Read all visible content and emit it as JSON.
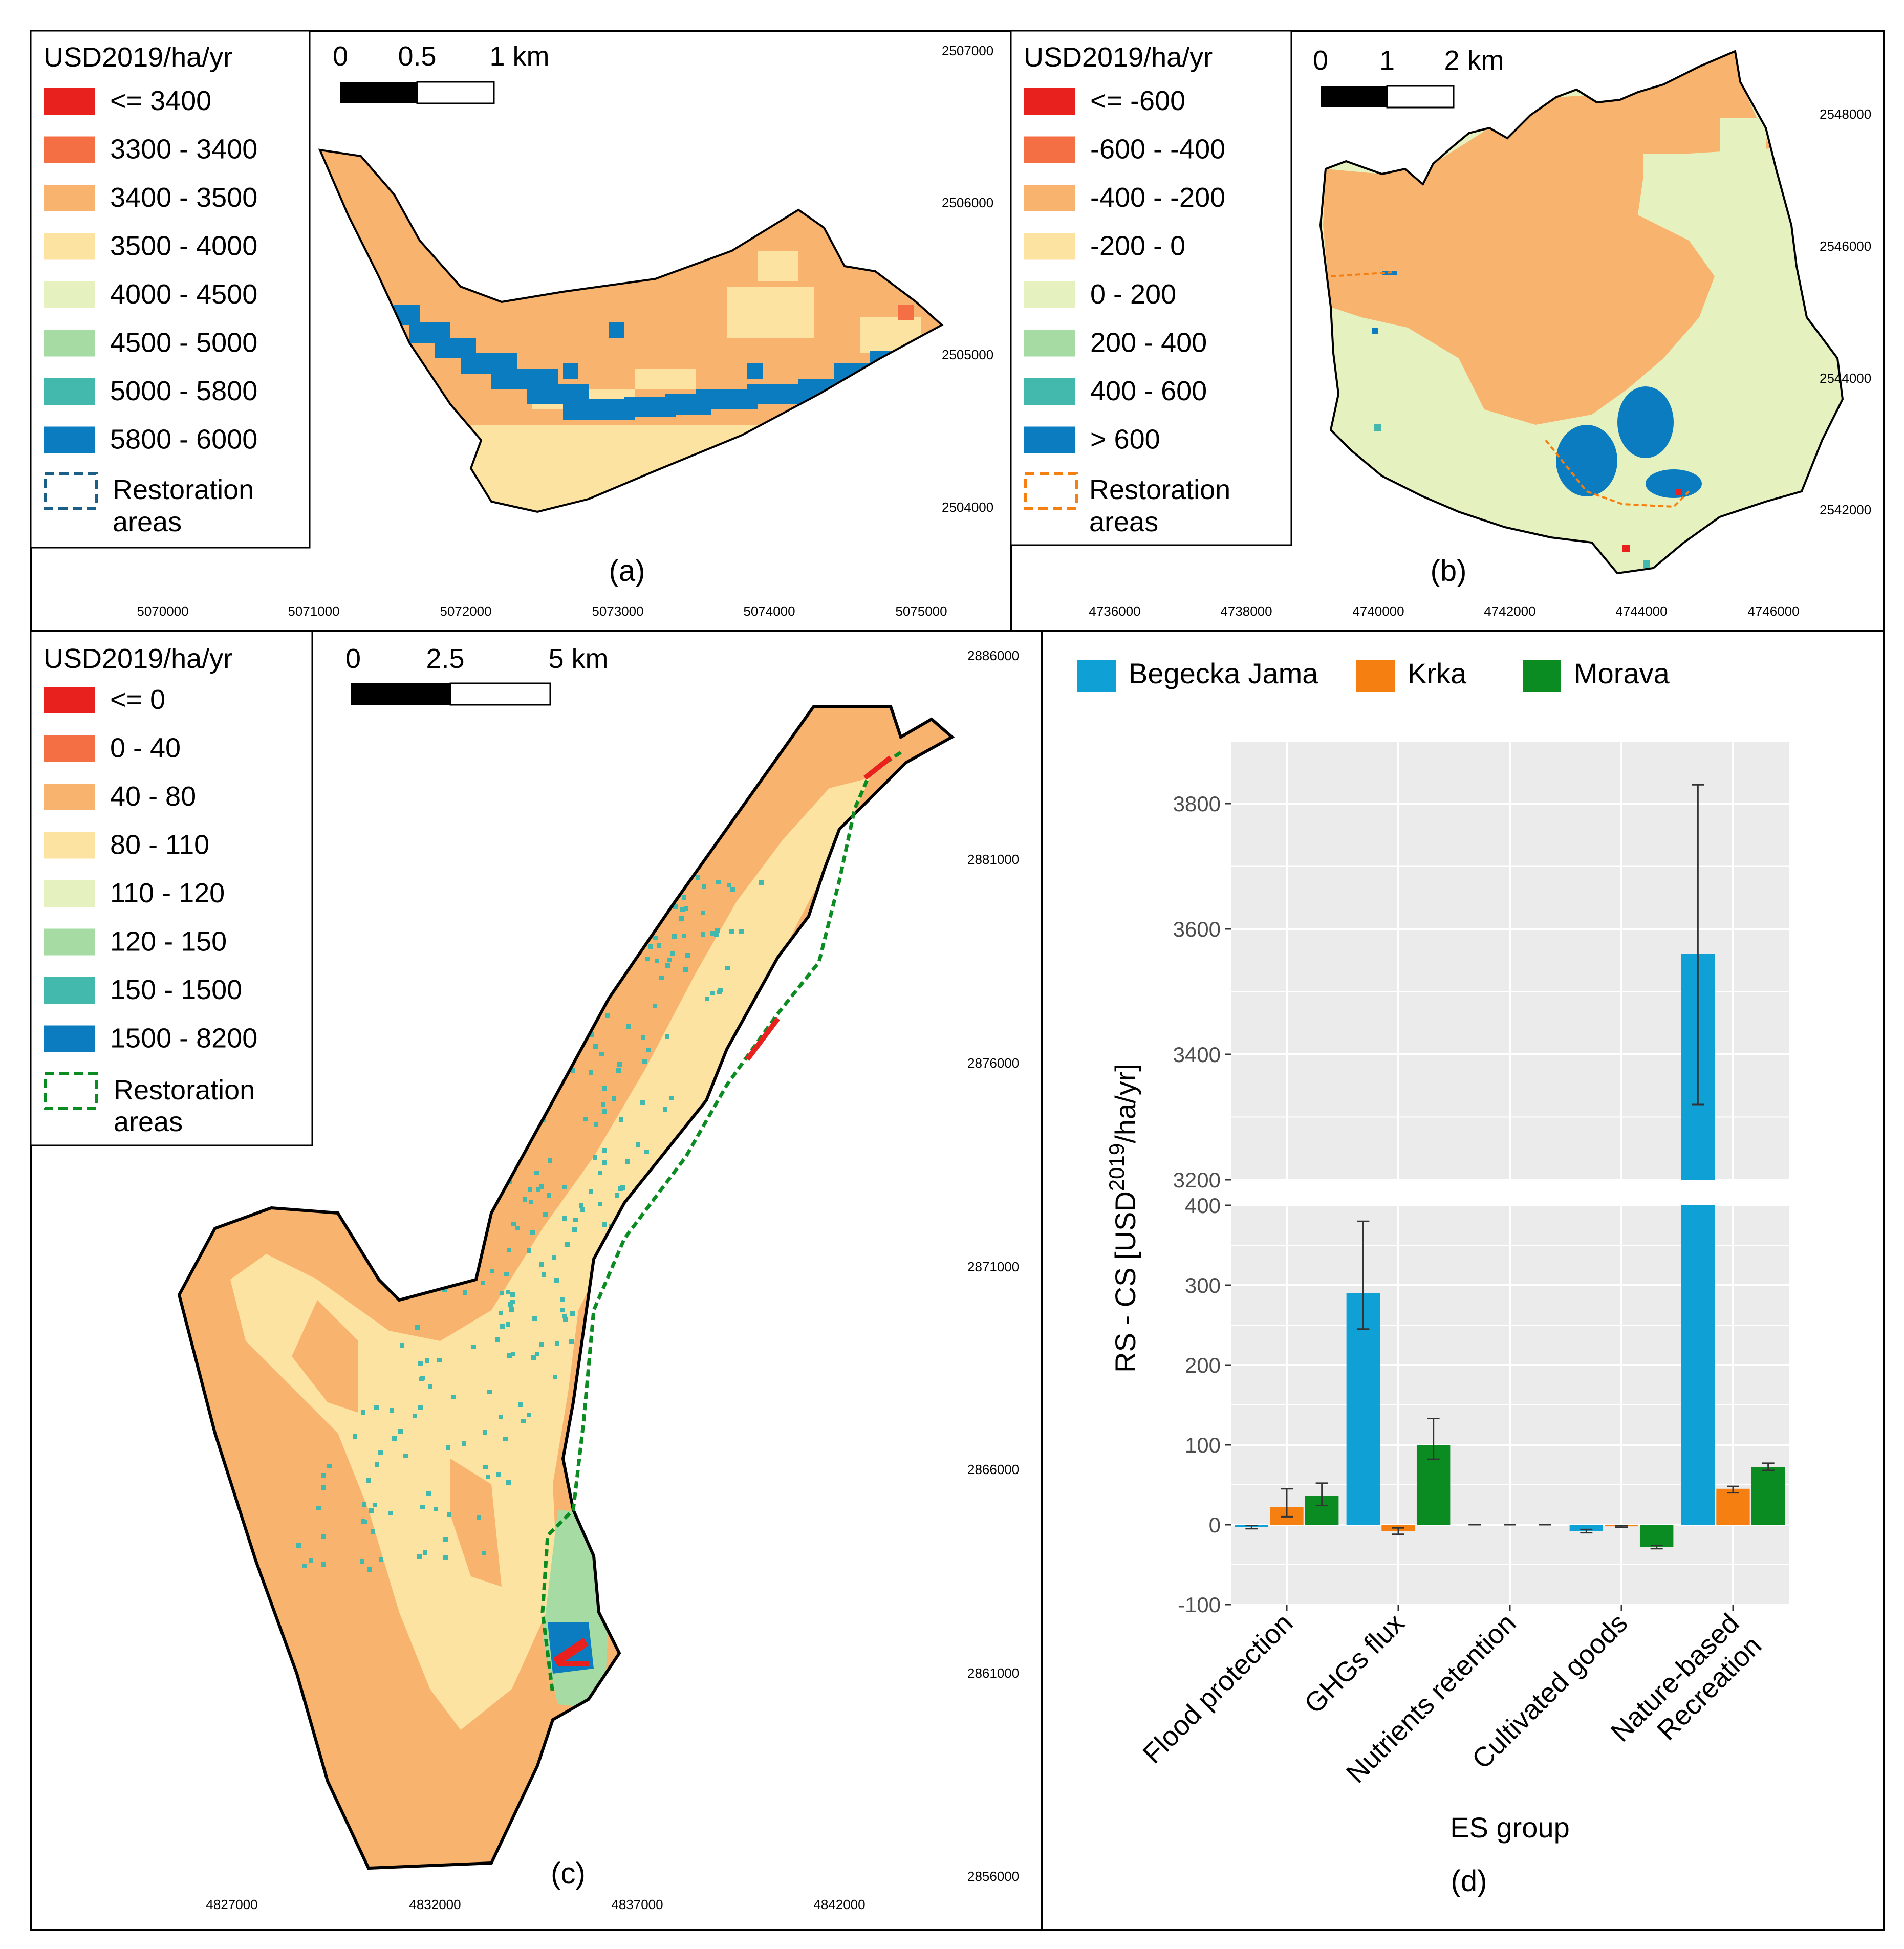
{
  "colors": {
    "red": "#e8211e",
    "orange": "#f46f43",
    "light_orange": "#f8b46e",
    "pale_yellow": "#fde3a1",
    "pale_green": "#e5f2c0",
    "light_green": "#a6dca3",
    "teal": "#43b8ac",
    "blue": "#0b7cbf",
    "chart_blue": "#0fa1d6",
    "chart_orange": "#f67f12",
    "chart_green": "#0b8c22",
    "panel_bg": "#ebebeb"
  },
  "panel_a": {
    "label": "(a)",
    "legend_title": "USD2019/ha/yr",
    "legend": [
      "<= 3400",
      "3300 - 3400",
      "3400 - 3500",
      "3500 - 4000",
      "4000 - 4500",
      "4500 - 5000",
      "5000 - 5800",
      "5800 - 6000"
    ],
    "restoration_l1": "Restoration",
    "restoration_l2": "areas",
    "scale": [
      "0",
      "0.5",
      "1 km"
    ],
    "x_ticks": [
      "5070000",
      "5071000",
      "5072000",
      "5073000",
      "5074000",
      "5075000"
    ],
    "y_ticks": [
      "2507000",
      "2506000",
      "2505000",
      "2504000"
    ]
  },
  "panel_b": {
    "label": "(b)",
    "legend_title": "USD2019/ha/yr",
    "legend": [
      "<= -600",
      "-600 - -400",
      "-400 - -200",
      "-200 - 0",
      "0 - 200",
      "200 - 400",
      "400 - 600",
      "> 600"
    ],
    "restoration_l1": "Restoration",
    "restoration_l2": "areas",
    "scale": [
      "0",
      "1",
      "2 km"
    ],
    "x_ticks": [
      "4736000",
      "4738000",
      "4740000",
      "4742000",
      "4744000",
      "4746000"
    ],
    "y_ticks": [
      "2548000",
      "2546000",
      "2544000",
      "2542000"
    ]
  },
  "panel_c": {
    "label": "(c)",
    "legend_title": "USD2019/ha/yr",
    "legend": [
      "<= 0",
      "0 - 40",
      "40 - 80",
      "80 - 110",
      "110 - 120",
      "120 - 150",
      "150 - 1500",
      "1500 - 8200"
    ],
    "restoration_l1": "Restoration",
    "restoration_l2": "areas",
    "scale": [
      "0",
      "2.5",
      "5 km"
    ],
    "x_ticks": [
      "4827000",
      "4832000",
      "4837000",
      "4842000"
    ],
    "y_ticks": [
      "2886000",
      "2881000",
      "2876000",
      "2871000",
      "2866000",
      "2861000",
      "2856000"
    ]
  },
  "panel_d": {
    "label": "(d)",
    "chart_data": {
      "type": "bar",
      "categories": [
        "Flood protection",
        "GHGs flux",
        "Nutrients retention",
        "Cultivated goods",
        "Nature-based Recreation"
      ],
      "category_lines": [
        [
          "Flood protection"
        ],
        [
          "GHGs flux"
        ],
        [
          "Nutrients retention"
        ],
        [
          "Cultivated goods"
        ],
        [
          "Nature-based",
          "Recreation"
        ]
      ],
      "series": [
        {
          "name": "Begecka Jama",
          "values": [
            -3,
            290,
            0,
            -8,
            3560
          ],
          "err_low": [
            -5,
            245,
            0,
            -10,
            3320
          ],
          "err_high": [
            -1,
            380,
            0,
            -6,
            3830
          ]
        },
        {
          "name": "Krka",
          "values": [
            22,
            -8,
            0,
            -2,
            45
          ],
          "err_low": [
            10,
            -12,
            0,
            -3,
            40
          ],
          "err_high": [
            45,
            -4,
            0,
            -1,
            48
          ]
        },
        {
          "name": "Morava",
          "values": [
            36,
            100,
            0,
            -28,
            72
          ],
          "err_low": [
            24,
            82,
            0,
            -30,
            68
          ],
          "err_high": [
            52,
            133,
            0,
            -26,
            77
          ]
        }
      ],
      "xlabel": "ES group",
      "ylabel": "RS - CS [USD",
      "ylabel_sup": "2019",
      "ylabel_end": "/ha/yr]",
      "lower_ylim": [
        -100,
        400
      ],
      "upper_ylim": [
        3200,
        3800
      ],
      "lower_ticks": [
        "-100",
        "0",
        "100",
        "200",
        "300",
        "400"
      ],
      "upper_ticks": [
        "3200",
        "3400",
        "3600",
        "3800"
      ],
      "axis_break": true,
      "legend_position": "top"
    }
  }
}
